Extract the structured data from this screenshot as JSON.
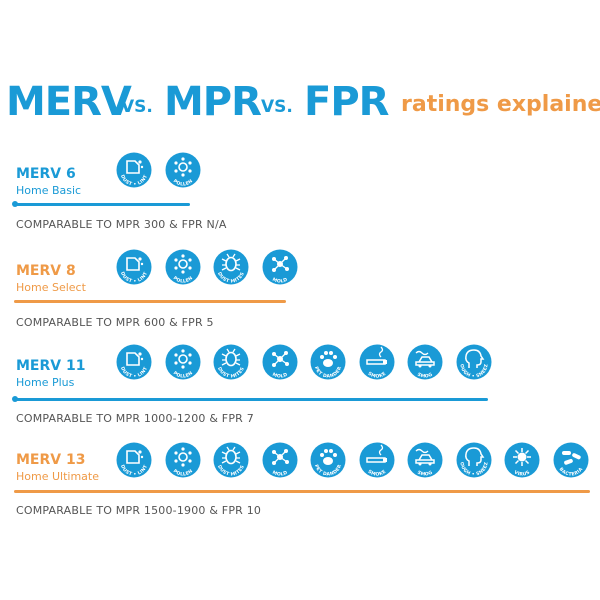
{
  "colors": {
    "blue": "#1a9ad6",
    "orange": "#ef9a47",
    "gray": "#555555"
  },
  "title": {
    "merv": "MERV",
    "vs1": "VS.",
    "mpr": "MPR",
    "vs2": "VS.",
    "fpr": "FPR",
    "rest": "ratings explained"
  },
  "tiers": [
    {
      "name": "MERV 6",
      "subtitle": "Home Basic",
      "comparable": "COMPARABLE TO MPR 300 & FPR N/A",
      "color": "blue",
      "icons": [
        {
          "icon": "dust-lint-icon",
          "label": "DUST • LINT"
        },
        {
          "icon": "pollen-icon",
          "label": "POLLEN"
        }
      ]
    },
    {
      "name": "MERV 8",
      "subtitle": "Home Select",
      "comparable": "COMPARABLE TO MPR 600 & FPR 5",
      "color": "orange",
      "icons": [
        {
          "icon": "dust-lint-icon",
          "label": "DUST • LINT"
        },
        {
          "icon": "pollen-icon",
          "label": "POLLEN"
        },
        {
          "icon": "dust-mites-icon",
          "label": "DUST MITES"
        },
        {
          "icon": "mold-icon",
          "label": "MOLD"
        }
      ]
    },
    {
      "name": "MERV 11",
      "subtitle": "Home Plus",
      "comparable": "COMPARABLE TO MPR 1000-1200 & FPR 7",
      "color": "blue",
      "icons": [
        {
          "icon": "dust-lint-icon",
          "label": "DUST • LINT"
        },
        {
          "icon": "pollen-icon",
          "label": "POLLEN"
        },
        {
          "icon": "dust-mites-icon",
          "label": "DUST MITES"
        },
        {
          "icon": "mold-icon",
          "label": "MOLD"
        },
        {
          "icon": "pet-dander-icon",
          "label": "PET DANDER"
        },
        {
          "icon": "smoke-icon",
          "label": "SMOKE"
        },
        {
          "icon": "smog-icon",
          "label": "SMOG"
        },
        {
          "icon": "cough-sneeze-icon",
          "label": "COUGH • SNEEZE"
        }
      ]
    },
    {
      "name": "MERV 13",
      "subtitle": "Home Ultimate",
      "comparable": "COMPARABLE TO MPR 1500-1900 & FPR 10",
      "color": "orange",
      "icons": [
        {
          "icon": "dust-lint-icon",
          "label": "DUST • LINT"
        },
        {
          "icon": "pollen-icon",
          "label": "POLLEN"
        },
        {
          "icon": "dust-mites-icon",
          "label": "DUST MITES"
        },
        {
          "icon": "mold-icon",
          "label": "MOLD"
        },
        {
          "icon": "pet-dander-icon",
          "label": "PET DANDER"
        },
        {
          "icon": "smoke-icon",
          "label": "SMOKE"
        },
        {
          "icon": "smog-icon",
          "label": "SMOG"
        },
        {
          "icon": "cough-sneeze-icon",
          "label": "COUGH • SNEEZE"
        },
        {
          "icon": "virus-icon",
          "label": "VIRUS"
        },
        {
          "icon": "bacteria-icon",
          "label": "BACTERIA"
        }
      ]
    }
  ]
}
